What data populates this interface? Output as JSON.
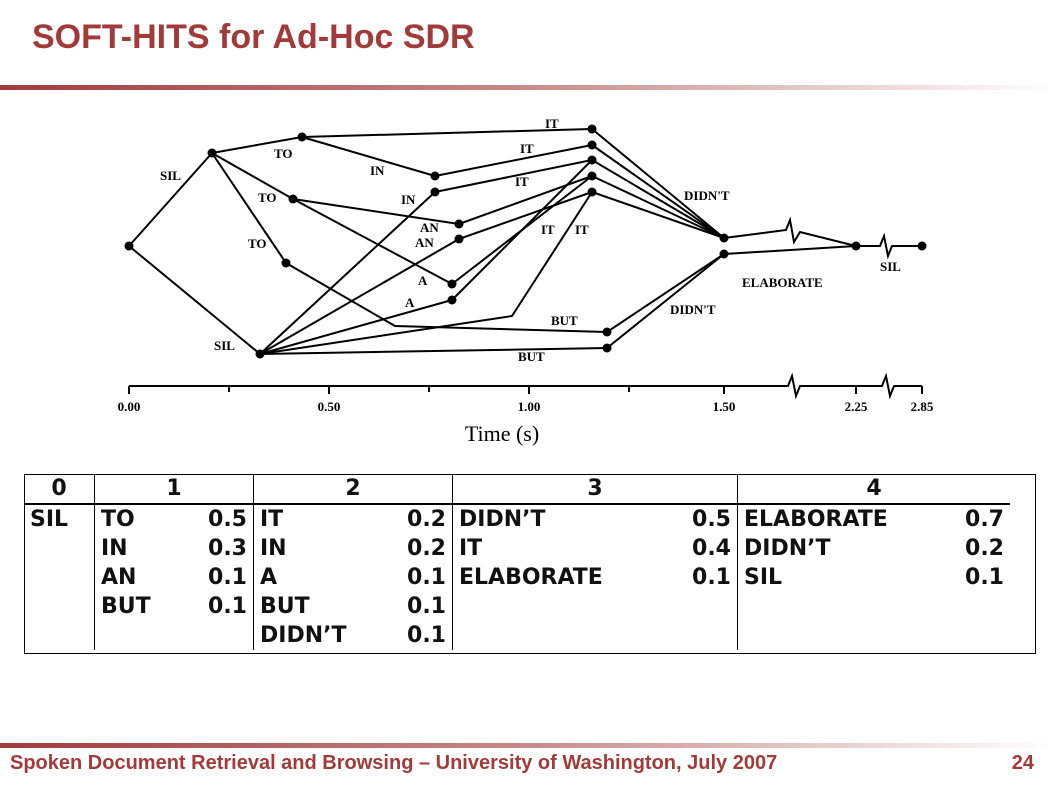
{
  "slide": {
    "title": "SOFT-HITS for Ad-Hoc SDR",
    "footer": "Spoken Document Retrieval and Browsing – University of Washington, July 2007",
    "page_number": "24"
  },
  "lattice": {
    "axis_ticks": [
      "0.00",
      "0.50",
      "1.00",
      "1.50",
      "2.25",
      "2.85"
    ],
    "axis_label": "Time (s)",
    "edge_labels": {
      "sil_top": "SIL",
      "sil_bottom": "SIL",
      "to1": "TO",
      "to2": "TO",
      "to3": "TO",
      "in1": "IN",
      "in2": "IN",
      "an1": "AN",
      "an2": "AN",
      "a1": "A",
      "a2": "A",
      "it1": "IT",
      "it2": "IT",
      "it3": "IT",
      "it4": "IT",
      "it5": "IT",
      "but1": "BUT",
      "but2": "BUT",
      "didnt1": "DIDN'T",
      "didnt2": "DIDN'T",
      "elaborate": "ELABORATE",
      "sil_end": "SIL"
    }
  },
  "table": {
    "headers": [
      "0",
      "1",
      "2",
      "3",
      "4"
    ],
    "col0": [
      "SIL"
    ],
    "col1": [
      [
        "TO",
        "0.5"
      ],
      [
        "IN",
        "0.3"
      ],
      [
        "AN",
        "0.1"
      ],
      [
        "BUT",
        "0.1"
      ]
    ],
    "col2": [
      [
        "IT",
        "0.2"
      ],
      [
        "IN",
        "0.2"
      ],
      [
        "A",
        "0.1"
      ],
      [
        "BUT",
        "0.1"
      ],
      [
        "DIDN’T",
        "0.1"
      ]
    ],
    "col3": [
      [
        "DIDN’T",
        "0.5"
      ],
      [
        "IT",
        "0.4"
      ],
      [
        "ELABORATE",
        "0.1"
      ]
    ],
    "col4": [
      [
        "ELABORATE",
        "0.7"
      ],
      [
        "DIDN’T",
        "0.2"
      ],
      [
        "SIL",
        "0.1"
      ]
    ]
  }
}
